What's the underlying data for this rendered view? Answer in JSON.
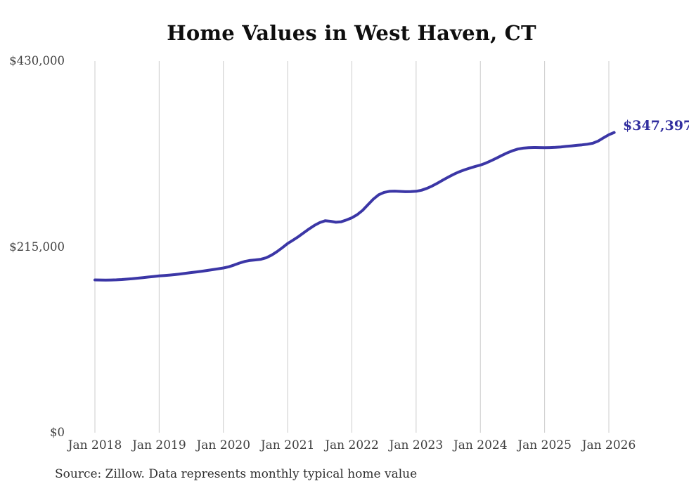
{
  "title": "Home Values in West Haven, CT",
  "source_note": "Source: Zillow. Data represents monthly typical home value",
  "latest_value_label": "$347,397",
  "colors": {
    "line": "#3b36a6",
    "value_label": "#322f9f",
    "gridline": "#cccccc",
    "axis_text": "#414141",
    "title_text": "#0e0e0e",
    "source_text": "#2e2e2e",
    "background": "#ffffff"
  },
  "chart_data": {
    "type": "line",
    "title": "Home Values in West Haven, CT",
    "xlabel": "",
    "ylabel": "",
    "ylim": [
      0,
      430000
    ],
    "grid": "vertical-only",
    "legend": "none",
    "x_tick_labels": [
      "Jan 2018",
      "Jan 2019",
      "Jan 2020",
      "Jan 2021",
      "Jan 2022",
      "Jan 2023",
      "Jan 2024",
      "Jan 2025",
      "Jan 2026"
    ],
    "y_ticks": [
      {
        "label": "$430,000",
        "value": 430000
      },
      {
        "label": "$215,000",
        "value": 215000
      },
      {
        "label": "$0",
        "value": 0
      }
    ],
    "last_point_label": "$347,397",
    "last_value": 347397,
    "series": [
      {
        "name": "Typical home value (monthly)",
        "start_month": "2018-01",
        "end_month": "2026-02",
        "interval": "monthly",
        "values": [
          176800,
          176700,
          176600,
          176700,
          176900,
          177200,
          177700,
          178200,
          178800,
          179500,
          180100,
          180800,
          181400,
          181900,
          182400,
          183000,
          183700,
          184500,
          185300,
          186100,
          186900,
          187800,
          188700,
          189600,
          190600,
          192000,
          194000,
          196300,
          198200,
          199400,
          200000,
          200700,
          202500,
          205500,
          209500,
          214000,
          218900,
          222800,
          226900,
          231300,
          235800,
          239900,
          243100,
          245200,
          244700,
          243500,
          244100,
          246200,
          248700,
          252300,
          257300,
          263800,
          270300,
          275300,
          278100,
          279300,
          279500,
          279200,
          278900,
          279000,
          279400,
          280600,
          282700,
          285500,
          288800,
          292300,
          295800,
          299000,
          301800,
          304100,
          306100,
          308000,
          309700,
          312000,
          314700,
          317700,
          320800,
          323800,
          326300,
          328200,
          329300,
          329800,
          330000,
          329900,
          329800,
          329900,
          330200,
          330700,
          331300,
          331900,
          332500,
          333100,
          333800,
          335000,
          337500,
          341200,
          344800,
          347397
        ]
      }
    ]
  }
}
